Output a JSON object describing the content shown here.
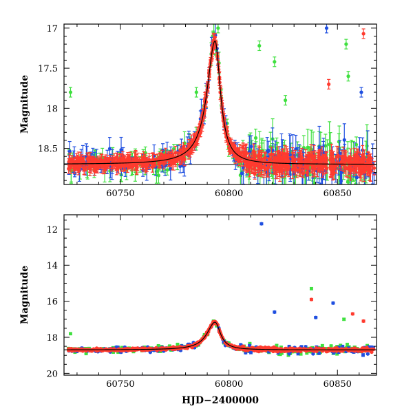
{
  "chart_data": [
    {
      "type": "scatter",
      "title": "",
      "xlabel": "",
      "ylabel": "Magnitude",
      "xlim": [
        60724,
        60868
      ],
      "ylim": [
        18.95,
        16.95
      ],
      "y_inverted": true,
      "x_ticks": [
        60750,
        60800,
        60850
      ],
      "x_tick_labels": [
        "60750",
        "60800",
        "60850"
      ],
      "y_ticks": [
        17,
        17.5,
        18,
        18.5
      ],
      "y_tick_labels": [
        "17",
        "17.5",
        "18",
        "18.5"
      ],
      "baseline": 18.7,
      "model": {
        "peak_x": 60793.6,
        "peak_y": 17.16,
        "baseline": 18.7,
        "width_left": 4.5,
        "width_right": 3.0
      },
      "series_colors": {
        "blue": "#1f4fe0",
        "green": "#3fe03f",
        "red": "#ff3b2f",
        "model": "#000000"
      },
      "outliers": [
        {
          "series": "blue",
          "x": 60845,
          "y": 17.0
        },
        {
          "series": "green",
          "x": 60795,
          "y": 17.0
        },
        {
          "series": "green",
          "x": 60814,
          "y": 17.22
        },
        {
          "series": "green",
          "x": 60821,
          "y": 17.42
        },
        {
          "series": "green",
          "x": 60854,
          "y": 17.2
        },
        {
          "series": "green",
          "x": 60855,
          "y": 17.6
        },
        {
          "series": "green",
          "x": 60727,
          "y": 17.8
        },
        {
          "series": "red",
          "x": 60862,
          "y": 17.07
        },
        {
          "series": "red",
          "x": 60846,
          "y": 17.7
        },
        {
          "series": "blue",
          "x": 60861,
          "y": 17.8
        },
        {
          "series": "green",
          "x": 60785,
          "y": 17.8
        },
        {
          "series": "green",
          "x": 60826,
          "y": 17.9
        }
      ]
    },
    {
      "type": "scatter",
      "title": "",
      "xlabel": "HJD−2400000",
      "ylabel": "Magnitude",
      "xlim": [
        60724,
        60868
      ],
      "ylim": [
        20.1,
        11.2
      ],
      "y_inverted": true,
      "x_ticks": [
        60750,
        60800,
        60850
      ],
      "x_tick_labels": [
        "60750",
        "60800",
        "60850"
      ],
      "y_ticks": [
        12,
        14,
        16,
        18,
        20
      ],
      "y_tick_labels": [
        "12",
        "14",
        "16",
        "18",
        "20"
      ],
      "model": {
        "peak_x": 60793.6,
        "peak_y": 17.16,
        "baseline": 18.7,
        "width_left": 4.5,
        "width_right": 3.0
      },
      "series_colors": {
        "blue": "#1f4fe0",
        "green": "#3fe03f",
        "red": "#ff3b2f",
        "model": "#000000"
      },
      "outliers": [
        {
          "series": "blue",
          "x": 60815,
          "y": 11.7
        },
        {
          "series": "green",
          "x": 60838,
          "y": 15.3
        },
        {
          "series": "red",
          "x": 60838,
          "y": 15.9
        },
        {
          "series": "blue",
          "x": 60848,
          "y": 16.1
        },
        {
          "series": "red",
          "x": 60857,
          "y": 16.7
        },
        {
          "series": "red",
          "x": 60862,
          "y": 17.1
        },
        {
          "series": "blue",
          "x": 60821,
          "y": 16.6
        },
        {
          "series": "blue",
          "x": 60840,
          "y": 16.9
        },
        {
          "series": "green",
          "x": 60853,
          "y": 17.0
        },
        {
          "series": "green",
          "x": 60727,
          "y": 17.8
        }
      ]
    }
  ]
}
